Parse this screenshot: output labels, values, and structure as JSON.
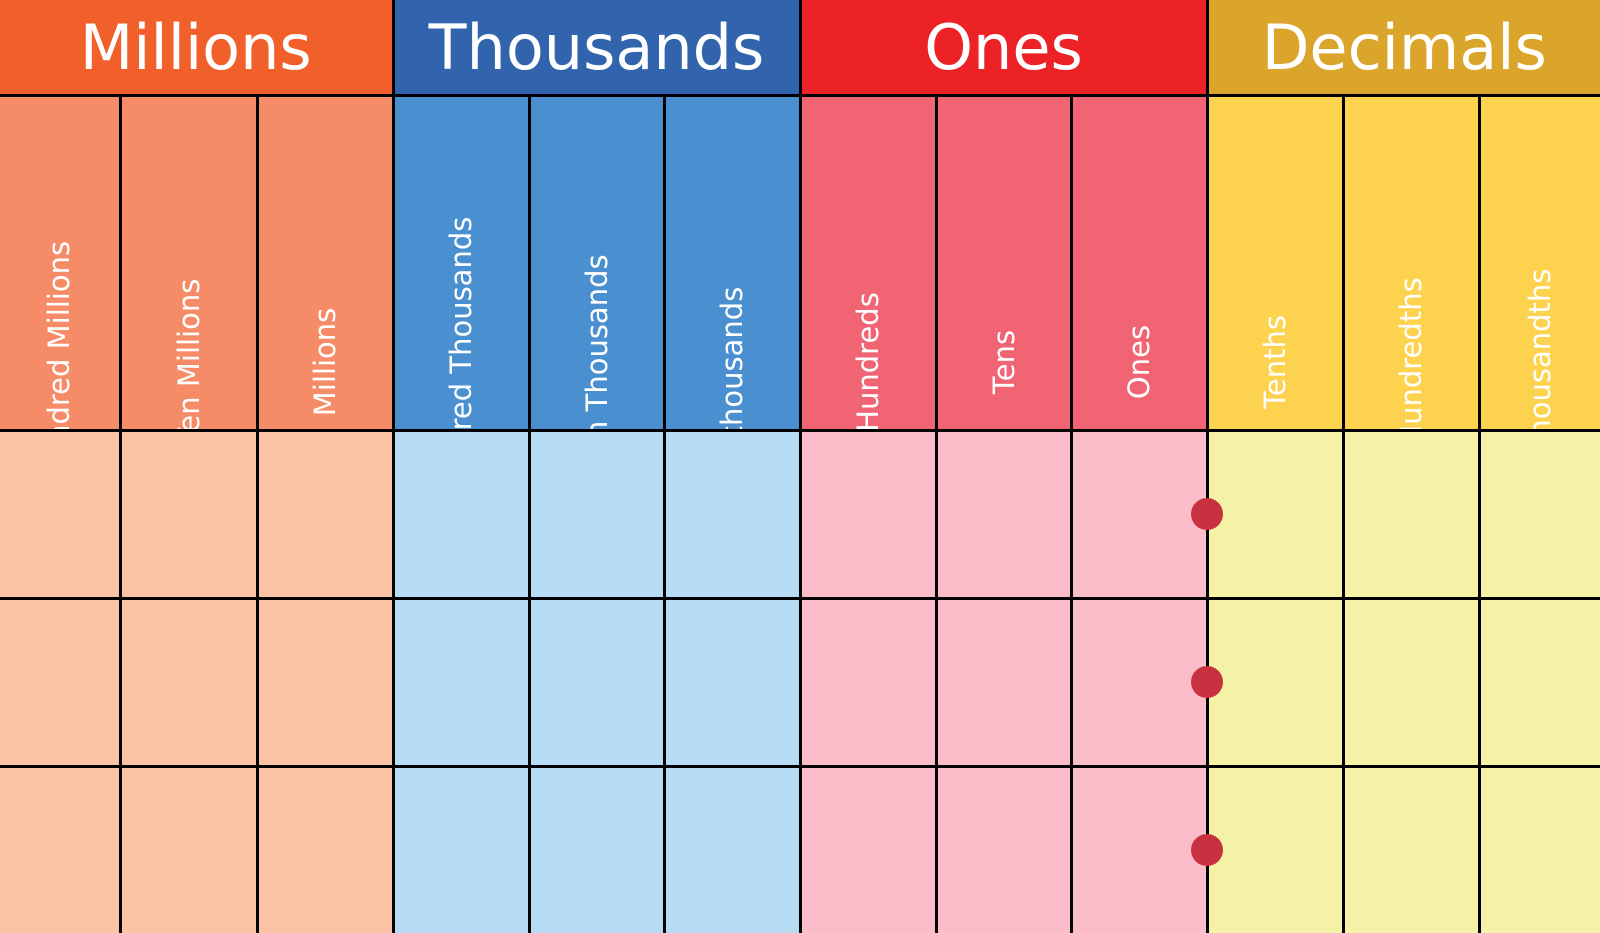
{
  "groups": [
    {
      "label": "Millions",
      "header_color": "#f15f2a",
      "label_color": "#f68c67",
      "cell_color": "#fbc2a6",
      "columns": [
        "Hundred Millions",
        "Ten Millions",
        "Millions"
      ]
    },
    {
      "label": "Thousands",
      "header_color": "#3164ad",
      "label_color": "#4a90d0",
      "cell_color": "#b7dbf3",
      "columns": [
        "Hundred Thousands",
        "Ten Thousands",
        "thousands"
      ]
    },
    {
      "label": "Ones",
      "header_color": "#ec2227",
      "label_color": "#f06474",
      "cell_color": "#f9bcc8",
      "columns": [
        "Hundreds",
        "Tens",
        "Ones"
      ]
    },
    {
      "label": "Decimals",
      "header_color": "#daa52a",
      "label_color": "#fdd24e",
      "cell_color": "#f5f2a8",
      "columns": [
        "Tenths",
        "Hundredths",
        "Thousandths"
      ]
    }
  ],
  "row_count": 3,
  "decimal_point_color": "#c8313f"
}
